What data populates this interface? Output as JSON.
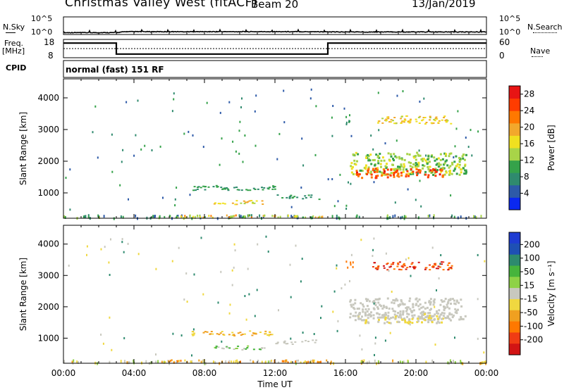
{
  "header": {
    "title": "Christmas Valley West (fitACF)",
    "beam": "Beam 20",
    "date": "13/Jan/2019",
    "mode": "normal (fast) 151 RF"
  },
  "left_labels": {
    "nsky": "N.Sky",
    "freq_line1": "Freq.",
    "freq_line2": "[MHz]",
    "cpid": "CPID"
  },
  "right_labels": {
    "nsearch": "N.Search",
    "nave": "Nave"
  },
  "colors": {
    "axis": "#000000",
    "power_scale": [
      "#0a28f0",
      "#2d5aa8",
      "#2f8a6e",
      "#35a24a",
      "#a8d448",
      "#f0e020",
      "#f2a82c",
      "#ff7800",
      "#ff3c00",
      "#e81414"
    ],
    "velocity_scale": [
      "#1e3cd2",
      "#1e50b4",
      "#2d8a6e",
      "#46b43c",
      "#8ed246",
      "#c8c8be",
      "#f0d840",
      "#f0a020",
      "#ff7800",
      "#f03c14",
      "#d21414"
    ]
  },
  "chart_data": [
    {
      "type": "line",
      "name": "N.Sky / N.Search",
      "x_unit": "hour UT",
      "y_ticks_left": [
        "10^5",
        "10^0"
      ],
      "y_ticks_right": [
        "10^5",
        "10^0"
      ],
      "x": [
        0,
        3,
        3.5,
        14.5,
        15,
        24
      ],
      "values_log10": [
        0.05,
        0.05,
        0.4,
        0.4,
        0.3,
        0.3
      ]
    },
    {
      "type": "line",
      "name": "Freq / Nave",
      "ylim_left": [
        8,
        18
      ],
      "y_ticks_left": [
        "18",
        "8"
      ],
      "ylim_right": [
        0,
        60
      ],
      "y_ticks_right": [
        "60",
        "0"
      ],
      "series": [
        {
          "name": "Freq",
          "x": [
            0,
            3,
            3,
            15,
            15,
            24
          ],
          "values": [
            16,
            16,
            10,
            10,
            16,
            16
          ]
        },
        {
          "name": "Nave",
          "x": [
            0,
            24
          ],
          "values": [
            30,
            30
          ]
        }
      ]
    },
    {
      "type": "heatmap",
      "name": "Power",
      "ylabel": "Slant Range [km]",
      "y_ticks": [
        "1000",
        "2000",
        "3000",
        "4000"
      ],
      "ylim": [
        200,
        4600
      ],
      "colorbar_label": "Power [dB]",
      "colorbar_ticks": [
        "4",
        "8",
        "12",
        "16",
        "20",
        "24",
        "28"
      ],
      "colorbar_range": [
        0,
        30
      ]
    },
    {
      "type": "heatmap",
      "name": "Velocity",
      "ylabel": "Slant Range [km]",
      "xlabel": "Time UT",
      "y_ticks": [
        "1000",
        "2000",
        "3000",
        "4000"
      ],
      "ylim": [
        200,
        4600
      ],
      "x_ticks": [
        "00:00",
        "04:00",
        "08:00",
        "12:00",
        "16:00",
        "20:00",
        "00:00"
      ],
      "xlim": [
        0,
        24
      ],
      "colorbar_label": "Velocity [m s⁻¹]",
      "colorbar_ticks": [
        "200",
        "100",
        "50",
        "15",
        "-15",
        "-50",
        "-100",
        "-200"
      ]
    }
  ]
}
